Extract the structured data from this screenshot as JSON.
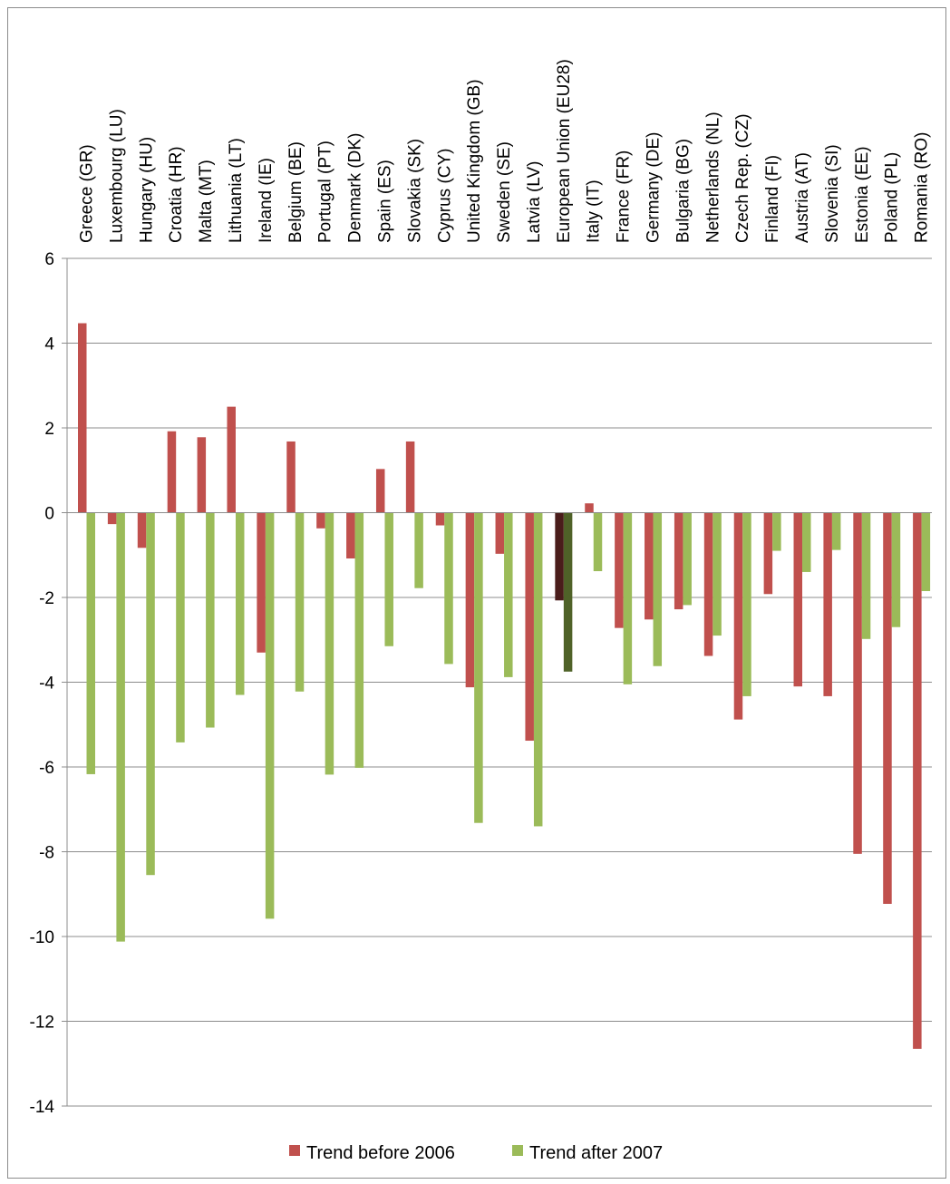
{
  "chart_data": {
    "type": "bar",
    "title": "",
    "xlabel": "",
    "ylabel": "",
    "ylim": [
      -14,
      6
    ],
    "y_ticks": [
      "6",
      "4",
      "2",
      "0",
      "-2",
      "-4",
      "-6",
      "-8",
      "-10",
      "-12",
      "-14"
    ],
    "y_tick_values": [
      6,
      4,
      2,
      0,
      -2,
      -4,
      -6,
      -8,
      -10,
      -12,
      -14
    ],
    "grid": "horizontal",
    "legend_position": "bottom",
    "category_labels_position": "top",
    "highlighted_category": "European Union (EU28)",
    "categories": [
      "Greece (GR)",
      "Luxembourg (LU)",
      "Hungary (HU)",
      "Croatia (HR)",
      "Malta (MT)",
      "Lithuania (LT)",
      "Ireland (IE)",
      "Belgium (BE)",
      "Portugal (PT)",
      "Denmark (DK)",
      "Spain (ES)",
      "Slovakia (SK)",
      "Cyprus (CY)",
      "United Kingdom (GB)",
      "Sweden (SE)",
      "Latvia (LV)",
      "European Union (EU28)",
      "Italy (IT)",
      "France (FR)",
      "Germany (DE)",
      "Bulgaria (BG)",
      "Netherlands (NL)",
      "Czech Rep. (CZ)",
      "Finland (FI)",
      "Austria (AT)",
      "Slovenia (SI)",
      "Estonia (EE)",
      "Poland (PL)",
      "Romania (RO)"
    ],
    "series": [
      {
        "name": "Trend before 2006",
        "color": "#c0504d",
        "highlight_color": "#4a1d1b",
        "values": [
          4.47,
          -0.27,
          -0.83,
          1.92,
          1.78,
          2.5,
          -3.3,
          1.68,
          -0.37,
          -1.08,
          1.03,
          1.68,
          -0.3,
          -4.12,
          -0.97,
          -5.38,
          -2.07,
          0.22,
          -2.72,
          -2.52,
          -2.28,
          -3.38,
          -4.88,
          -1.92,
          -4.1,
          -4.33,
          -8.05,
          -9.23,
          -12.65
        ]
      },
      {
        "name": "Trend after 2007",
        "color": "#9bbb59",
        "highlight_color": "#4f6228",
        "values": [
          -6.17,
          -10.12,
          -8.55,
          -5.42,
          -5.07,
          -4.3,
          -9.58,
          -4.22,
          -6.18,
          -6.02,
          -3.15,
          -1.78,
          -3.57,
          -7.32,
          -3.88,
          -7.4,
          -3.75,
          -1.38,
          -4.05,
          -3.62,
          -2.18,
          -2.9,
          -4.33,
          -0.9,
          -1.4,
          -0.88,
          -2.98,
          -2.7,
          -1.85
        ]
      }
    ]
  }
}
